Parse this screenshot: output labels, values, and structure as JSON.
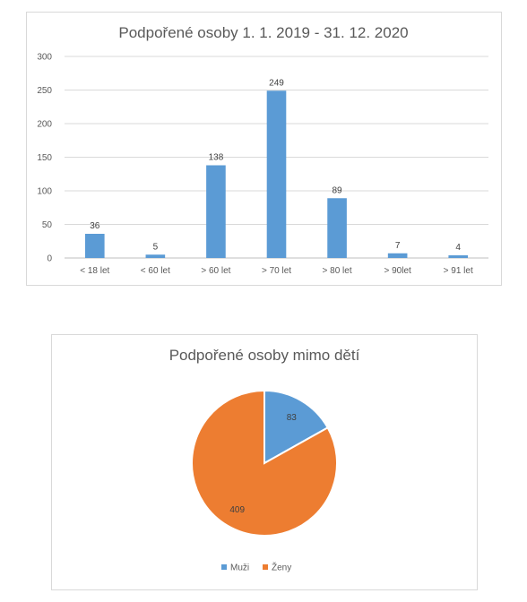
{
  "chart_data": [
    {
      "type": "bar",
      "title": "Podpořené osoby 1. 1. 2019 - 31. 12. 2020",
      "categories": [
        "< 18 let",
        "< 60 let",
        "> 60 let",
        "> 70 let",
        "> 80 let",
        "> 90let",
        "> 91 let"
      ],
      "values": [
        36,
        5,
        138,
        249,
        89,
        7,
        4
      ],
      "xlabel": "",
      "ylabel": "",
      "ylim": [
        0,
        300
      ],
      "yticks": [
        0,
        50,
        100,
        150,
        200,
        250,
        300
      ],
      "grid": true,
      "color": "#5b9bd5"
    },
    {
      "type": "pie",
      "title": "Podpořené osoby mimo dětí",
      "labels": [
        "Muži",
        "Ženy"
      ],
      "values": [
        83,
        409
      ],
      "colors": [
        "#5b9bd5",
        "#ed7d31"
      ],
      "legend": "bottom"
    }
  ]
}
